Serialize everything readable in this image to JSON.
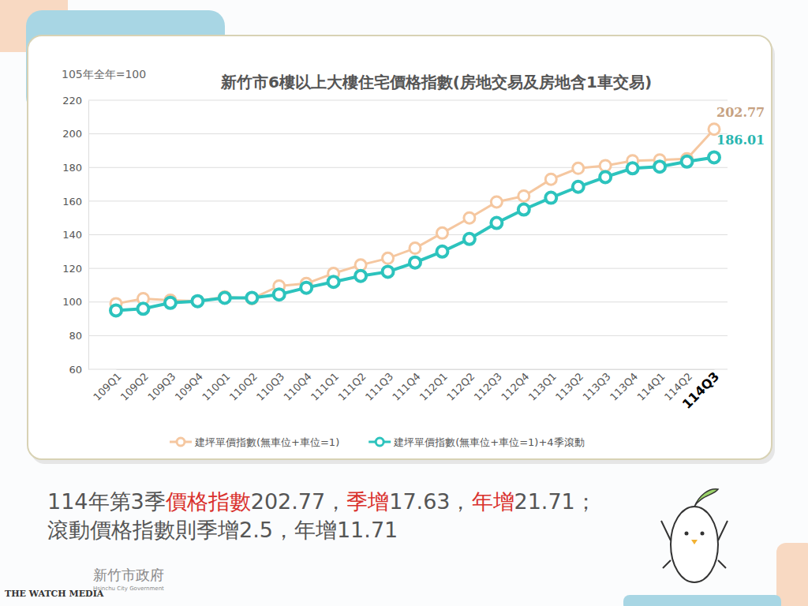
{
  "chart_data": {
    "type": "line",
    "title": "新竹市6樓以上大樓住宅價格指數(房地交易及房地含1車交易)",
    "subtitle": "105年全年=100",
    "categories": [
      "109Q1",
      "109Q2",
      "109Q3",
      "109Q4",
      "110Q1",
      "110Q2",
      "110Q3",
      "110Q4",
      "111Q1",
      "111Q2",
      "111Q3",
      "111Q4",
      "112Q1",
      "112Q2",
      "112Q3",
      "112Q4",
      "113Q1",
      "113Q2",
      "113Q3",
      "113Q4",
      "114Q1",
      "114Q2",
      "114Q3"
    ],
    "series": [
      {
        "name": "建坪單價指數(無車位+車位=1)",
        "color": "#f5c7a0",
        "marker": "circle",
        "line_style": "solid",
        "values": [
          99,
          102,
          101,
          100.5,
          103,
          102,
          109.5,
          111,
          117,
          122,
          126,
          132,
          141,
          150,
          159.5,
          163,
          173,
          179.5,
          181.06,
          184,
          184.5,
          185.14,
          202.77
        ],
        "value_labels": [
          null,
          null,
          null,
          null,
          null,
          null,
          null,
          null,
          null,
          null,
          null,
          null,
          null,
          null,
          null,
          null,
          null,
          null,
          null,
          null,
          null,
          null,
          "202.77"
        ]
      },
      {
        "name": "建坪單價指數(無車位+車位=1)+4季滾動",
        "color": "#2cc3bd",
        "marker": "circle",
        "line_style": "solid",
        "values": [
          95,
          96,
          99.5,
          100.5,
          102.5,
          102.5,
          104.5,
          108.5,
          112,
          115.5,
          118,
          123.5,
          130,
          137.5,
          147,
          155,
          162,
          168.5,
          174.3,
          179.5,
          180.5,
          183.51,
          186.01
        ],
        "value_labels": [
          null,
          null,
          null,
          null,
          null,
          null,
          null,
          null,
          null,
          null,
          null,
          null,
          null,
          null,
          null,
          null,
          null,
          null,
          null,
          null,
          null,
          null,
          "186.01"
        ]
      }
    ],
    "ylim": [
      60,
      220
    ],
    "yticks": [
      60,
      80,
      100,
      120,
      140,
      160,
      180,
      200,
      220
    ],
    "grid": true,
    "legend": "bottom",
    "data_labels": true
  },
  "summary": [
    [
      {
        "text": "114年第3季"
      },
      {
        "text": "價格指數",
        "highlight": true
      },
      {
        "text": "202.77，"
      },
      {
        "text": "季增",
        "highlight": true
      },
      {
        "text": "17.63，"
      },
      {
        "text": "年增",
        "highlight": true
      },
      {
        "text": "21.71；"
      }
    ],
    [
      {
        "text": "滾動價格指數則季增2.5，年增11.71"
      }
    ]
  ],
  "logo": {
    "name": "新竹市政府",
    "english": "Hsinchu City Government"
  },
  "watermark": "THE WATCH MEDIA"
}
